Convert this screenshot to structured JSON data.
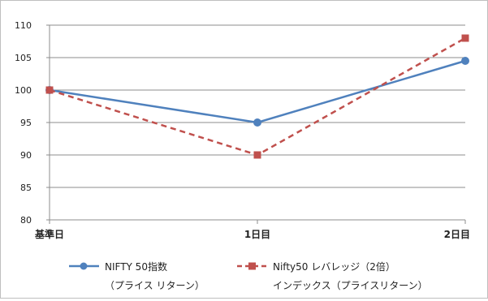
{
  "chart_data": {
    "type": "line",
    "title": "",
    "xlabel": "",
    "ylabel": "",
    "categories": [
      "基準日",
      "1日目",
      "2日目"
    ],
    "ylim": [
      80,
      110
    ],
    "yticks": [
      80,
      85,
      90,
      95,
      100,
      105,
      110
    ],
    "grid": true,
    "legend_position": "bottom",
    "series": [
      {
        "name_line1": "NIFTY 50指数",
        "name_line2": "（プライス リターン）",
        "values": [
          100,
          95,
          104.5
        ],
        "color": "#4f81bd",
        "line_style": "solid",
        "marker": "circle"
      },
      {
        "name_line1": "Nifty50 レバレッジ（2倍）",
        "name_line2": "インデックス（プライスリターン）",
        "values": [
          100,
          90,
          108
        ],
        "color": "#c0504d",
        "line_style": "dashed",
        "marker": "square"
      }
    ]
  }
}
